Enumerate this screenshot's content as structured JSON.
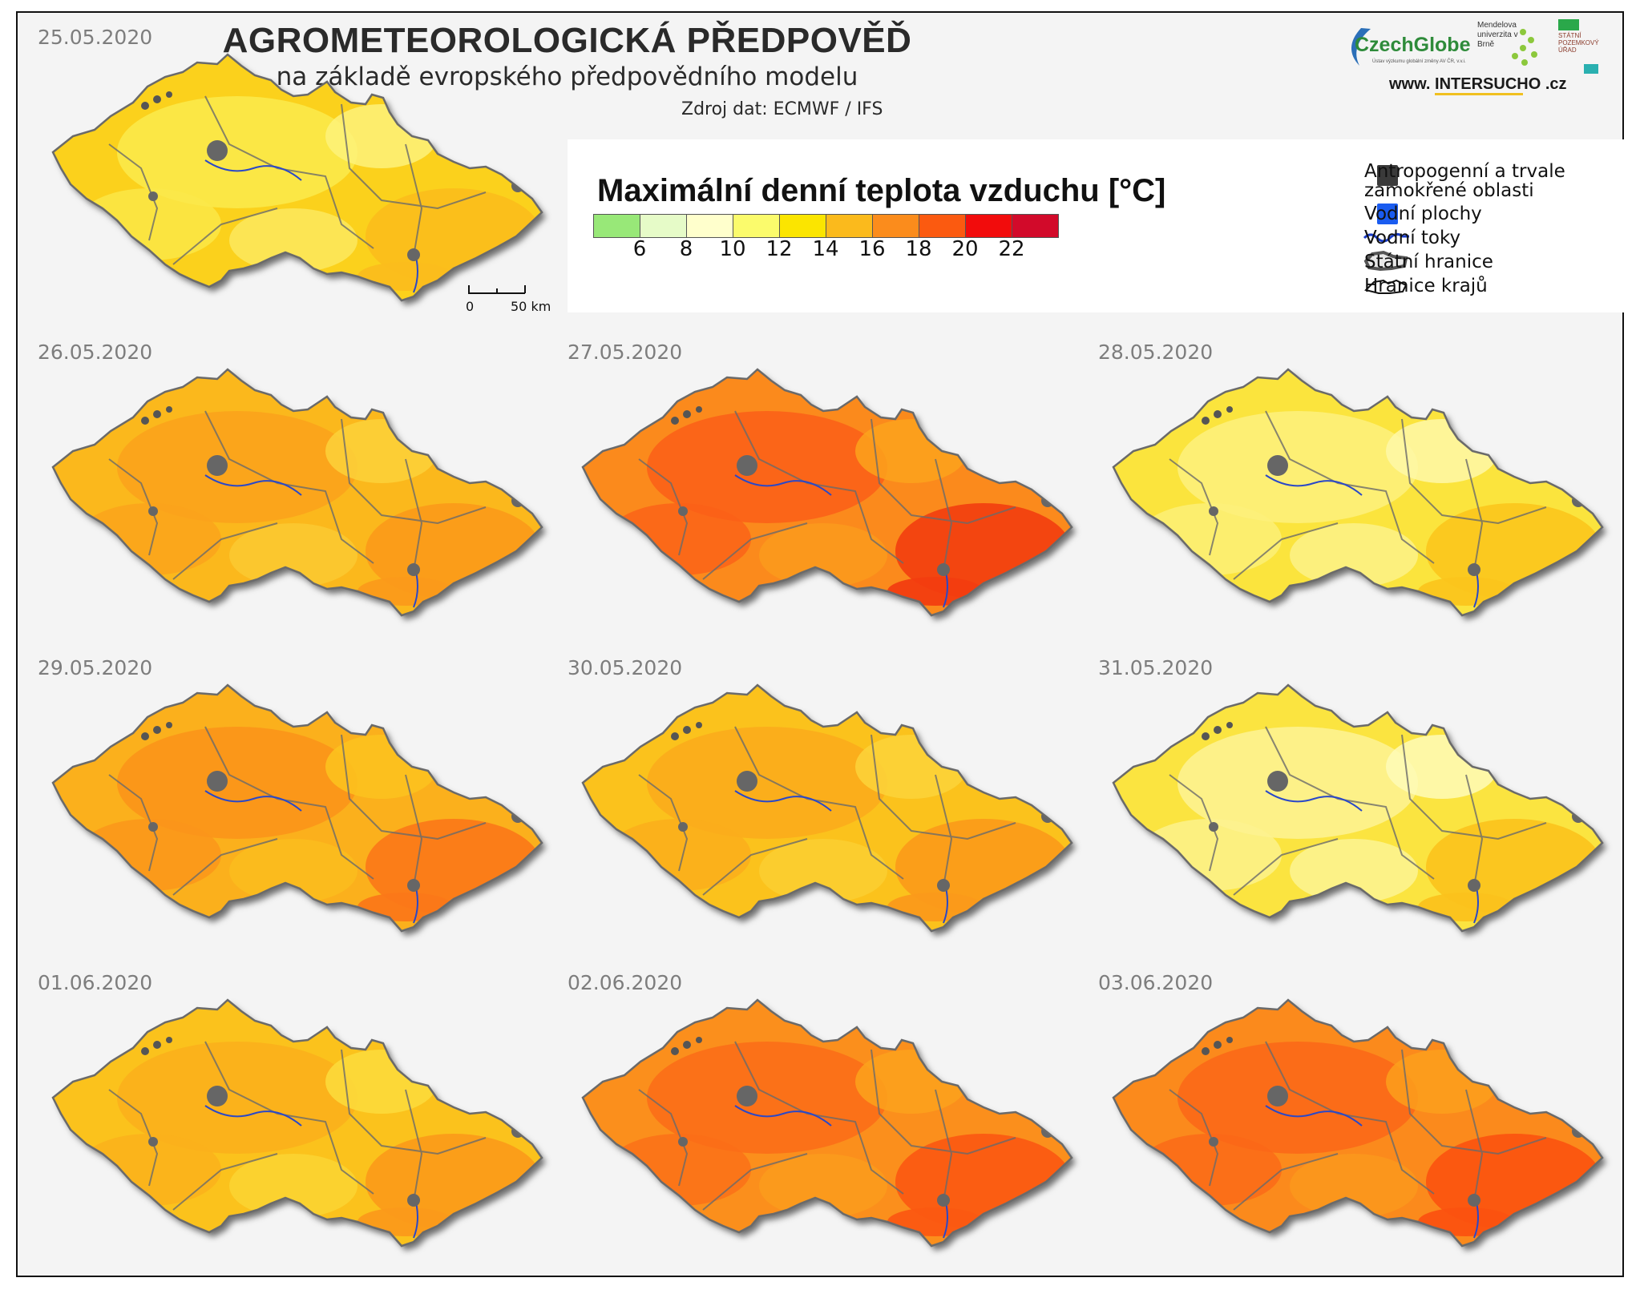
{
  "header": {
    "title": "AGROMETEOROLOGICKÁ  PŘEDPOVĚĎ",
    "subtitle": "na základě evropského předpovědního modelu",
    "source": "Zdroj dat: ECMWF / IFS"
  },
  "logos": {
    "czechglobe": "CzechGlobe",
    "czechglobe_sub": "Ústav výzkumu globální změny AV ČR, v.v.i.",
    "mendel": "Mendelova univerzita v Brně",
    "spu": "STÁTNÍ POZEMKOVÝ ÚŘAD",
    "intersucho_prefix": "www. INTER",
    "intersucho_hl": "SUCHO",
    "intersucho_suffix": " .cz"
  },
  "legend": {
    "title": "Maximální denní teplota vzduchu [°C]",
    "colors": [
      "#98e878",
      "#e6fbc8",
      "#ffffcc",
      "#fbfb6c",
      "#fbe500",
      "#fbba1c",
      "#fb8c1c",
      "#fb5a10",
      "#f20c0c",
      "#d20a2a"
    ],
    "ticks": [
      "6",
      "8",
      "10",
      "12",
      "14",
      "16",
      "18",
      "20",
      "22"
    ],
    "items": [
      {
        "label": "Antropogenní a trvale",
        "label2": "zamokřené oblasti",
        "symbol": "square",
        "color": "#3a3a3a"
      },
      {
        "label": "Vodní plochy",
        "symbol": "square",
        "color": "#1a5cf0"
      },
      {
        "label": "Vodní toky",
        "symbol": "river",
        "color": "#1a3cc8"
      },
      {
        "label": "Státní hranice",
        "symbol": "state-border",
        "color": "#555555"
      },
      {
        "label": "Hranice krajů",
        "symbol": "region-border",
        "color": "#111111"
      }
    ]
  },
  "scale": {
    "zero": "0",
    "fifty": "50 km"
  },
  "maps": [
    {
      "date": "25.05.2020",
      "base": "#fbd11a",
      "patch1": "#fbe94a",
      "patch2": "#fbbd1c",
      "patch3": "#fdf27a"
    },
    {
      "date": "26.05.2020",
      "base": "#fbb81e",
      "patch1": "#fba31c",
      "patch2": "#fb9a1a",
      "patch3": "#fbd13a"
    },
    {
      "date": "27.05.2020",
      "base": "#fb8a1c",
      "patch1": "#fb6018",
      "patch2": "#f23d10",
      "patch3": "#fba21c"
    },
    {
      "date": "28.05.2020",
      "base": "#fbe43c",
      "patch1": "#fdf07a",
      "patch2": "#fbc51c",
      "patch3": "#fef8a8"
    },
    {
      "date": "29.05.2020",
      "base": "#fbb01c",
      "patch1": "#fb951a",
      "patch2": "#fb7818",
      "patch3": "#fbc31e"
    },
    {
      "date": "30.05.2020",
      "base": "#fbc21c",
      "patch1": "#fbac1c",
      "patch2": "#fb9a1a",
      "patch3": "#fbd43a"
    },
    {
      "date": "31.05.2020",
      "base": "#fbe440",
      "patch1": "#fdf290",
      "patch2": "#fbc21c",
      "patch3": "#fefbb8"
    },
    {
      "date": "01.06.2020",
      "base": "#fbc21c",
      "patch1": "#fbb01c",
      "patch2": "#fb9a1a",
      "patch3": "#fbdc3c"
    },
    {
      "date": "02.06.2020",
      "base": "#fb8f1c",
      "patch1": "#fb6e18",
      "patch2": "#fb5812",
      "patch3": "#fba21c"
    },
    {
      "date": "03.06.2020",
      "base": "#fb8a1c",
      "patch1": "#fb6818",
      "patch2": "#fb5210",
      "patch3": "#fb9f1c"
    }
  ]
}
